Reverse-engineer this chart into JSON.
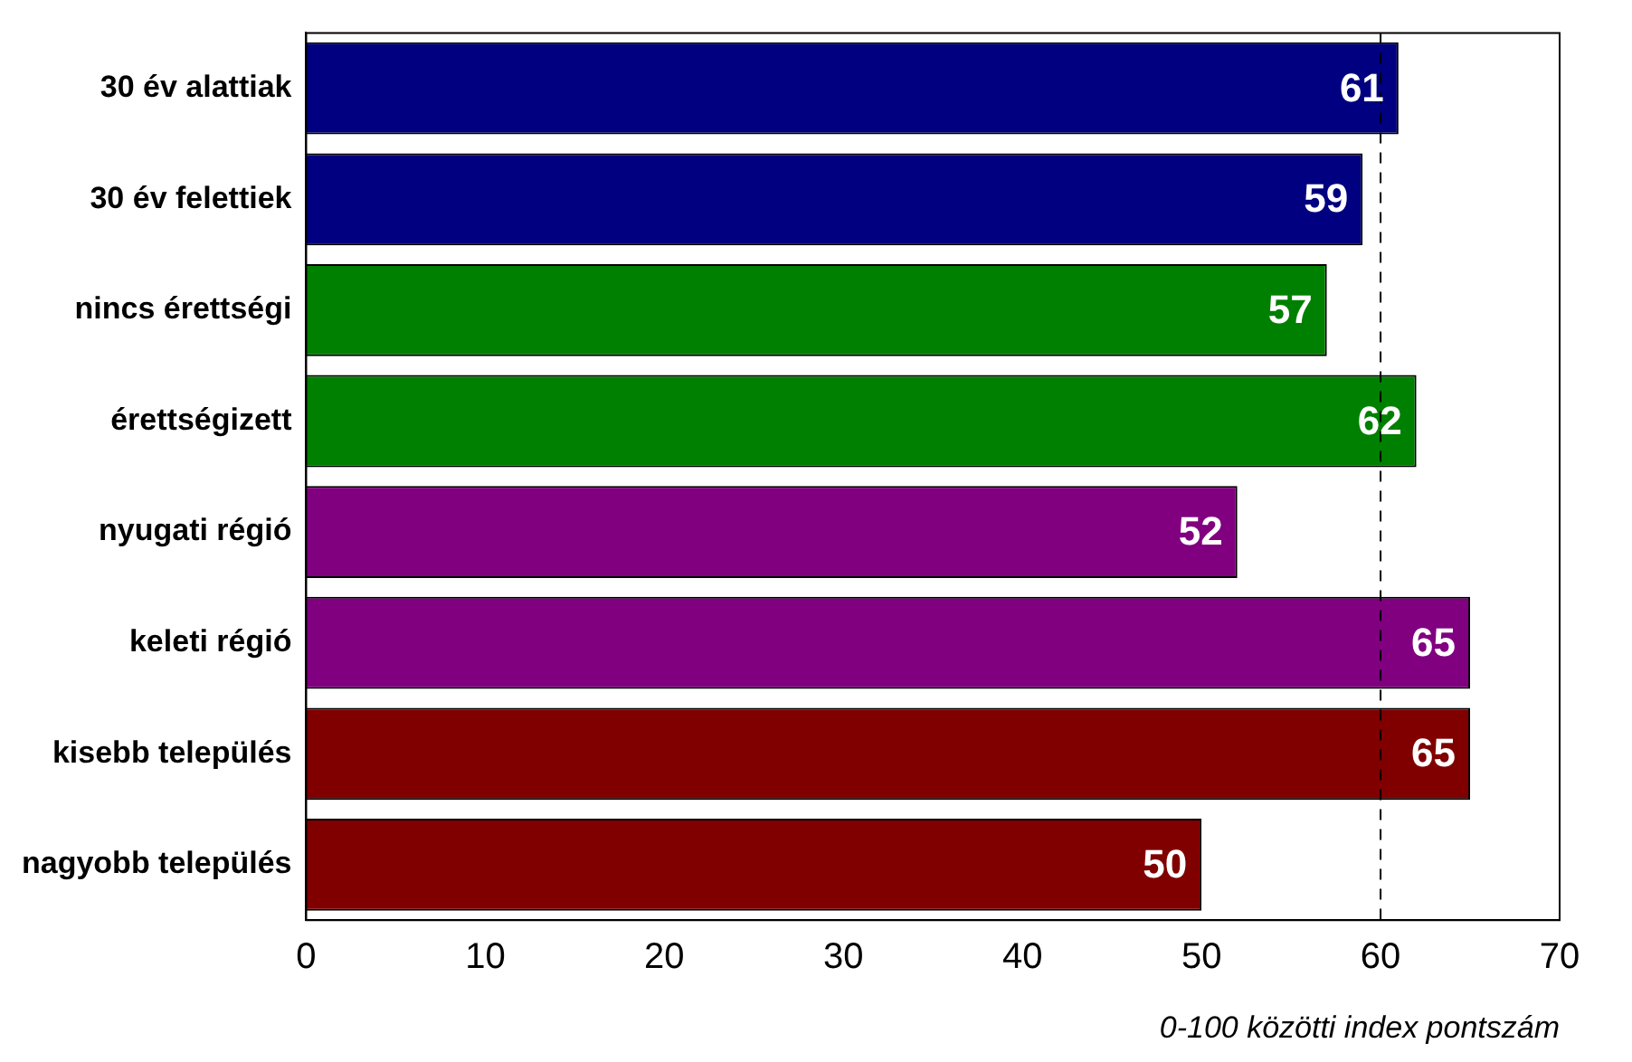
{
  "chart_data": {
    "type": "bar",
    "orientation": "horizontal",
    "xlabel": "0-100 közötti index pontszám",
    "categories": [
      "30 év alattiak",
      "30 év felettiek",
      "nincs érettségi",
      "érettségizett",
      "nyugati régió",
      "keleti régió",
      "kisebb település",
      "nagyobb település"
    ],
    "values": [
      61,
      59,
      57,
      62,
      52,
      65,
      65,
      50
    ],
    "colors": [
      "#000080",
      "#000080",
      "#008000",
      "#008000",
      "#800080",
      "#800080",
      "#800000",
      "#800000"
    ],
    "xlim": [
      0,
      70
    ],
    "xticks": [
      0,
      10,
      20,
      30,
      40,
      50,
      60,
      70
    ],
    "ref_lines": [
      {
        "axis": "x",
        "value": 60,
        "line_style": "dashed",
        "color": "#000000"
      }
    ],
    "grid": false,
    "legend": false,
    "data_labels": true
  }
}
